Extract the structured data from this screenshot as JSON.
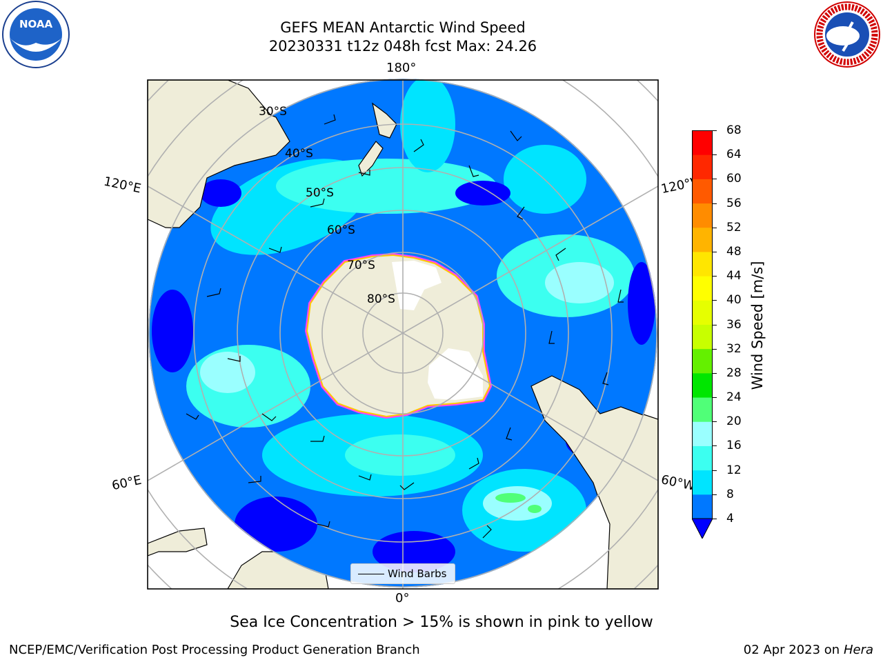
{
  "header": {
    "title_line1": "GEFS MEAN Antarctic Wind Speed",
    "title_line2": "20230331 t12z 048h fcst   Max: 24.26"
  },
  "logos": {
    "left": "NOAA",
    "left_ring_text": "NATIONAL OCEANIC AND ATMOSPHERIC ADMINISTRATION · U.S. DEPARTMENT OF COMMERCE",
    "right_ring_text": "NATIONAL WEATHER SERVICE"
  },
  "map": {
    "lon_labels": {
      "top": "180°",
      "bottom": "0°",
      "left_upper": "120°E",
      "left_lower": "60°E",
      "right_upper": "120°W",
      "right_lower": "60°W"
    },
    "lat_labels": [
      "30°S",
      "40°S",
      "50°S",
      "60°S",
      "70°S",
      "80°S"
    ],
    "legend_label": "Wind Barbs"
  },
  "colorbar": {
    "label": "Wind Speed [m/s]",
    "ticks": [
      "4",
      "8",
      "12",
      "16",
      "20",
      "24",
      "28",
      "32",
      "36",
      "40",
      "44",
      "48",
      "52",
      "56",
      "60",
      "64",
      "68"
    ],
    "colors": [
      "#0000ff",
      "#0078ff",
      "#00e4ff",
      "#3cfff0",
      "#9affff",
      "#50ff78",
      "#00e600",
      "#64f000",
      "#c8ff00",
      "#e6ff00",
      "#ffff00",
      "#ffe600",
      "#ffb400",
      "#ff8c00",
      "#ff5a00",
      "#ff2800",
      "#ff0000"
    ]
  },
  "caption": "Sea Ice Concentration > 15% is shown in pink to yellow",
  "footer": {
    "left": "NCEP/EMC/Verification Post Processing Product Generation Branch",
    "right_date": "02 Apr 2023 on ",
    "right_host": "Hera"
  }
}
